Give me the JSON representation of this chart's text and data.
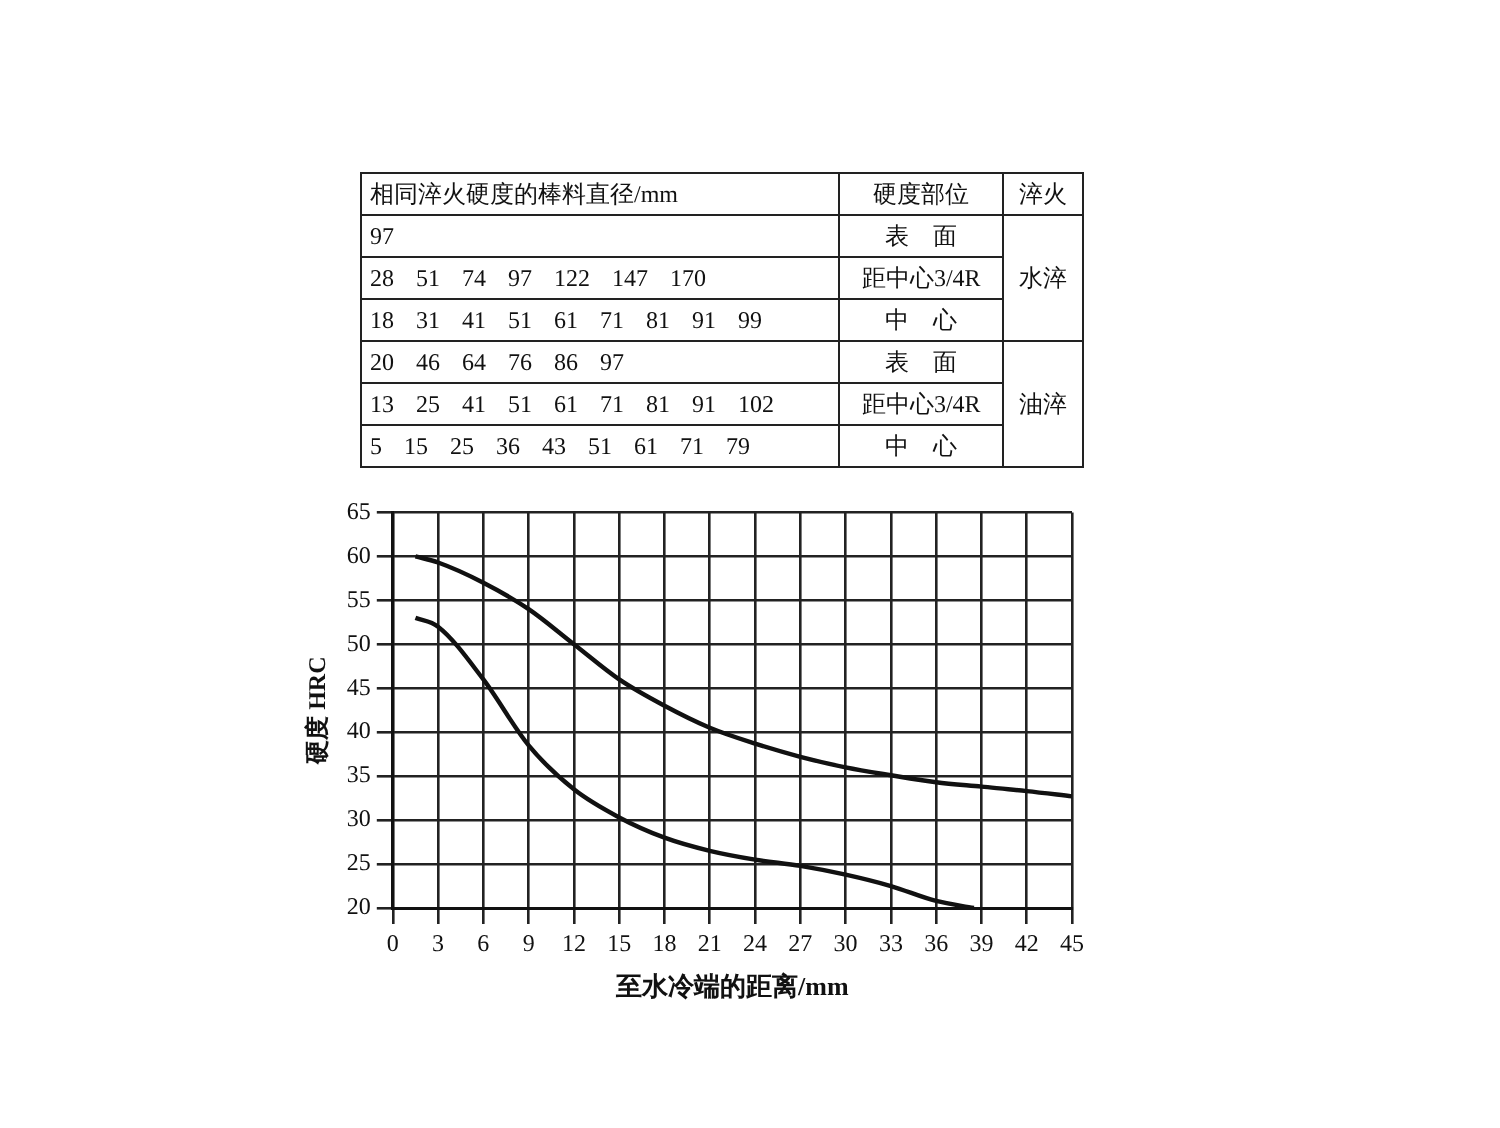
{
  "chart_data": {
    "type": "line",
    "xlabel": "至水冷端的距离/mm",
    "ylabel": "硬度 HRC",
    "xlim": [
      0,
      45
    ],
    "xticks": [
      0,
      3,
      6,
      9,
      12,
      15,
      18,
      21,
      24,
      27,
      30,
      33,
      36,
      39,
      42,
      45
    ],
    "ylim": [
      20,
      65
    ],
    "yticks": [
      20,
      25,
      30,
      35,
      40,
      45,
      50,
      55,
      60,
      65
    ],
    "grid": true,
    "legend": false,
    "marker": "none",
    "line_style": "solid",
    "series": [
      {
        "color": "#111111",
        "x": [
          1.5,
          3,
          6,
          9,
          12,
          15,
          18,
          21,
          24,
          27,
          30,
          33,
          36,
          39,
          42,
          45
        ],
        "values": [
          60,
          59.3,
          57,
          54,
          50,
          46,
          43,
          40.5,
          38.7,
          37.2,
          36,
          35.1,
          34.3,
          33.8,
          33.3,
          32.7
        ]
      },
      {
        "color": "#111111",
        "x": [
          1.5,
          3,
          6,
          9,
          12,
          15,
          18,
          21,
          24,
          27,
          30,
          33,
          36,
          38.5
        ],
        "values": [
          53,
          52,
          46,
          38.5,
          33.5,
          30.3,
          28,
          26.5,
          25.5,
          24.8,
          23.8,
          22.5,
          20.8,
          20
        ]
      }
    ],
    "annotations": [
      "相同淬火硬度的棒料直径/mm",
      "硬度部位",
      "淬火",
      "97",
      "表　面",
      "28 51 74 97 122 147 170",
      "距中心3/4R",
      "18 31 41 51 61 71 81 91 99",
      "中　心",
      "20 46 64 76 86 97",
      "表　面",
      "13 25 41 51 61 71 81 91 102",
      "距中心3/4R",
      "5 15 25 36 43 51 61 71 79",
      "中　心",
      "水淬",
      "油淬"
    ]
  }
}
